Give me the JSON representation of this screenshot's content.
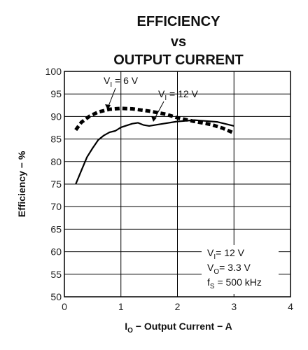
{
  "chart_data": {
    "type": "line",
    "title_lines": [
      "EFFICIENCY",
      "vs",
      "OUTPUT CURRENT"
    ],
    "xlabel": {
      "main": "I",
      "sub": "O",
      "rest": " − Output Current − A"
    },
    "ylabel": "Efficiency − %",
    "xlim": [
      0,
      4
    ],
    "ylim": [
      50,
      100
    ],
    "xticks": [
      "0",
      "1",
      "2",
      "3",
      "4"
    ],
    "yticks": [
      "50",
      "55",
      "60",
      "65",
      "70",
      "75",
      "80",
      "85",
      "90",
      "95",
      "100"
    ],
    "grid": true,
    "series": [
      {
        "label_main": "V",
        "label_sub": "I",
        "label_rest": " = 6 V",
        "style": "dashed",
        "x": [
          0.2,
          0.3,
          0.45,
          0.6,
          0.8,
          1.0,
          1.2,
          1.5,
          1.8,
          2.0,
          2.3,
          2.6,
          2.8,
          3.0
        ],
        "y": [
          87,
          88.7,
          90.1,
          91.0,
          91.6,
          91.8,
          91.7,
          91.2,
          90.5,
          89.7,
          88.9,
          88.2,
          87.4,
          86.3
        ]
      },
      {
        "label_main": "V",
        "label_sub": "I",
        "label_rest": " = 12 V",
        "style": "solid",
        "x": [
          0.2,
          0.3,
          0.4,
          0.5,
          0.6,
          0.7,
          0.8,
          0.9,
          1.0,
          1.1,
          1.2,
          1.3,
          1.4,
          1.5,
          1.7,
          2.0,
          2.3,
          2.5,
          2.7,
          3.0
        ],
        "y": [
          75.0,
          78.0,
          81.0,
          83.0,
          84.8,
          85.8,
          86.5,
          86.8,
          87.6,
          88.0,
          88.4,
          88.6,
          88.1,
          87.9,
          88.3,
          88.9,
          89.2,
          89.0,
          88.8,
          87.9
        ]
      }
    ],
    "conditions": [
      {
        "main": "V",
        "sub": "I",
        "rest": "= 12 V"
      },
      {
        "main": "V",
        "sub": "O",
        "rest": "= 3.3 V"
      },
      {
        "main": "f",
        "sub": "S",
        "rest": " = 500 kHz"
      }
    ]
  }
}
